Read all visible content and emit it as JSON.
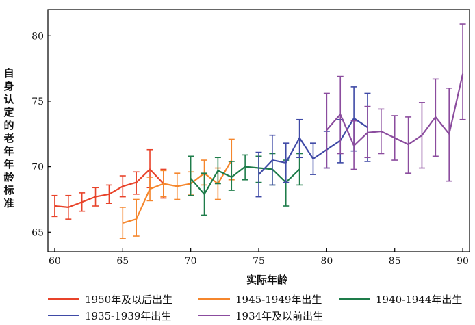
{
  "chart_data": {
    "type": "line",
    "title": "",
    "xlabel": "实际年龄",
    "ylabel": "自身认定的老年年龄标准",
    "xlim": [
      59.5,
      90.5
    ],
    "ylim": [
      63.5,
      82
    ],
    "xticks": [
      60,
      65,
      70,
      75,
      80,
      85,
      90
    ],
    "yticks": [
      65,
      70,
      75,
      80
    ],
    "series": [
      {
        "name": "1950年及以后出生",
        "color": "#e8432a",
        "points": [
          {
            "x": 60,
            "y": 67.0,
            "lo": 66.2,
            "hi": 67.8
          },
          {
            "x": 61,
            "y": 66.9,
            "lo": 66.0,
            "hi": 67.8
          },
          {
            "x": 62,
            "y": 67.3,
            "lo": 66.6,
            "hi": 68.0
          },
          {
            "x": 63,
            "y": 67.7,
            "lo": 67.0,
            "hi": 68.4
          },
          {
            "x": 64,
            "y": 67.9,
            "lo": 67.2,
            "hi": 68.6
          },
          {
            "x": 65,
            "y": 68.5,
            "lo": 67.7,
            "hi": 69.3
          },
          {
            "x": 66,
            "y": 68.8,
            "lo": 67.9,
            "hi": 69.6
          },
          {
            "x": 67,
            "y": 69.8,
            "lo": 68.4,
            "hi": 71.3
          },
          {
            "x": 68,
            "y": 68.7,
            "lo": 67.6,
            "hi": 69.8
          }
        ]
      },
      {
        "name": "1945-1949年出生",
        "color": "#f5862c",
        "points": [
          {
            "x": 65,
            "y": 65.7,
            "lo": 64.5,
            "hi": 66.9
          },
          {
            "x": 66,
            "y": 66.0,
            "lo": 64.7,
            "hi": 67.5
          },
          {
            "x": 67,
            "y": 68.3,
            "lo": 67.4,
            "hi": 69.2
          },
          {
            "x": 68,
            "y": 68.7,
            "lo": 67.7,
            "hi": 69.7
          },
          {
            "x": 69,
            "y": 68.5,
            "lo": 67.5,
            "hi": 69.5
          },
          {
            "x": 70,
            "y": 68.7,
            "lo": 67.9,
            "hi": 69.6
          },
          {
            "x": 71,
            "y": 69.5,
            "lo": 68.6,
            "hi": 70.5
          },
          {
            "x": 72,
            "y": 68.7,
            "lo": 67.5,
            "hi": 69.9
          },
          {
            "x": 73,
            "y": 70.5,
            "lo": 69.0,
            "hi": 72.1
          }
        ]
      },
      {
        "name": "1940-1944年出生",
        "color": "#1e7c4a",
        "points": [
          {
            "x": 70,
            "y": 69.1,
            "lo": 67.8,
            "hi": 70.8
          },
          {
            "x": 71,
            "y": 67.9,
            "lo": 66.3,
            "hi": 69.5
          },
          {
            "x": 72,
            "y": 69.7,
            "lo": 68.7,
            "hi": 70.7
          },
          {
            "x": 73,
            "y": 69.2,
            "lo": 68.2,
            "hi": 70.4
          },
          {
            "x": 74,
            "y": 70.0,
            "lo": 69.0,
            "hi": 70.9
          },
          {
            "x": 75,
            "y": 69.9,
            "lo": 68.8,
            "hi": 70.8
          },
          {
            "x": 76,
            "y": 69.8,
            "lo": 68.6,
            "hi": 71.0
          },
          {
            "x": 77,
            "y": 68.8,
            "lo": 67.0,
            "hi": 70.5
          },
          {
            "x": 78,
            "y": 69.8,
            "lo": 68.6,
            "hi": 71.0
          }
        ]
      },
      {
        "name": "1935-1939年出生",
        "color": "#3f4aa6",
        "points": [
          {
            "x": 75,
            "y": 69.4,
            "lo": 67.7,
            "hi": 71.1
          },
          {
            "x": 76,
            "y": 70.5,
            "lo": 68.6,
            "hi": 72.4
          },
          {
            "x": 77,
            "y": 70.3,
            "lo": 68.8,
            "hi": 71.8
          },
          {
            "x": 78,
            "y": 72.2,
            "lo": 70.7,
            "hi": 73.6
          },
          {
            "x": 79,
            "y": 70.6,
            "lo": 69.4,
            "hi": 71.8
          },
          {
            "x": 80,
            "y": 71.3,
            "lo": 69.9,
            "hi": 72.7
          },
          {
            "x": 81,
            "y": 72.0,
            "lo": 70.3,
            "hi": 73.6
          },
          {
            "x": 82,
            "y": 73.7,
            "lo": 71.2,
            "hi": 76.1
          },
          {
            "x": 83,
            "y": 73.0,
            "lo": 70.4,
            "hi": 75.6
          }
        ]
      },
      {
        "name": "1934年及以前出生",
        "color": "#8b4c9e",
        "points": [
          {
            "x": 80,
            "y": 72.8,
            "lo": 69.9,
            "hi": 75.6
          },
          {
            "x": 81,
            "y": 74.0,
            "lo": 71.0,
            "hi": 76.9
          },
          {
            "x": 82,
            "y": 71.6,
            "lo": 69.8,
            "hi": 73.5
          },
          {
            "x": 83,
            "y": 72.6,
            "lo": 70.7,
            "hi": 74.6
          },
          {
            "x": 84,
            "y": 72.7,
            "lo": 71.0,
            "hi": 74.4
          },
          {
            "x": 85,
            "y": 72.2,
            "lo": 70.5,
            "hi": 73.9
          },
          {
            "x": 86,
            "y": 71.7,
            "lo": 69.5,
            "hi": 73.8
          },
          {
            "x": 87,
            "y": 72.4,
            "lo": 69.9,
            "hi": 74.9
          },
          {
            "x": 88,
            "y": 73.8,
            "lo": 70.8,
            "hi": 76.7
          },
          {
            "x": 89,
            "y": 72.5,
            "lo": 68.9,
            "hi": 76.0
          },
          {
            "x": 90,
            "y": 77.1,
            "lo": 73.6,
            "hi": 80.9
          }
        ]
      }
    ],
    "legend": [
      "1950年及以后出生",
      "1945-1949年出生",
      "1940-1944年出生",
      "1935-1939年出生",
      "1934年及以前出生"
    ]
  }
}
